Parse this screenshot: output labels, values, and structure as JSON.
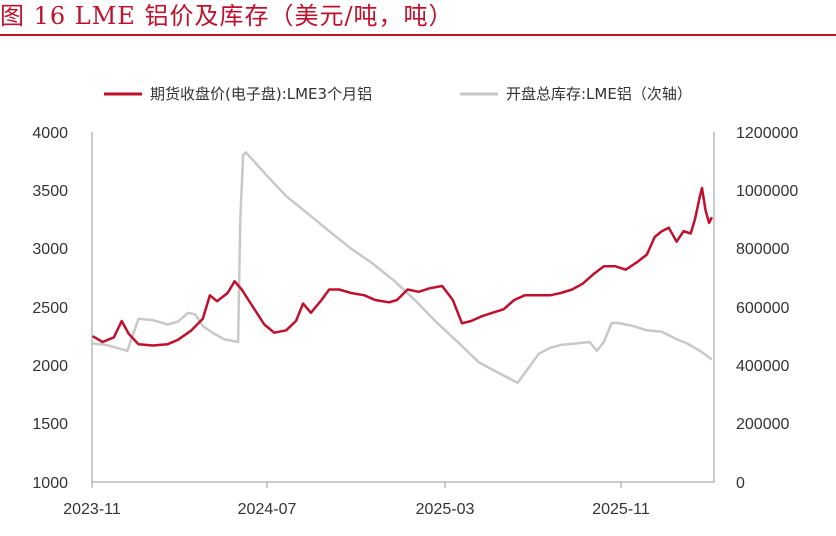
{
  "figure_title": "图 16 LME 铝价及库存（美元/吨，吨）",
  "chart_data": {
    "type": "line",
    "title": "图 16 LME 铝价及库存（美元/吨，吨）",
    "xlabel": "",
    "ylabel": "",
    "grid": false,
    "legend_position": "top",
    "x_ticks": [
      "2023-11",
      "2024-07",
      "2025-03",
      "2025-11"
    ],
    "y_left": {
      "ticks": [
        "4000",
        "3500",
        "3000",
        "2500",
        "2000",
        "1500",
        "1000"
      ],
      "range": [
        1000,
        4000
      ]
    },
    "y_right": {
      "ticks": [
        "1200000",
        "1000000",
        "800000",
        "600000",
        "400000",
        "200000",
        "0"
      ],
      "range": [
        0,
        1200000
      ]
    },
    "series": [
      {
        "name": "期货收盘价(电子盘):LME3个月铝",
        "axis": "left",
        "color": "#c0102c",
        "points": [
          [
            "2023-11-01",
            2250
          ],
          [
            "2023-11-15",
            2200
          ],
          [
            "2023-12-01",
            2240
          ],
          [
            "2023-12-12",
            2380
          ],
          [
            "2023-12-22",
            2270
          ],
          [
            "2024-01-05",
            2180
          ],
          [
            "2024-01-25",
            2170
          ],
          [
            "2024-02-15",
            2180
          ],
          [
            "2024-03-01",
            2220
          ],
          [
            "2024-03-20",
            2300
          ],
          [
            "2024-04-05",
            2400
          ],
          [
            "2024-04-15",
            2600
          ],
          [
            "2024-04-25",
            2550
          ],
          [
            "2024-05-10",
            2620
          ],
          [
            "2024-05-20",
            2720
          ],
          [
            "2024-05-30",
            2650
          ],
          [
            "2024-06-15",
            2500
          ],
          [
            "2024-07-01",
            2350
          ],
          [
            "2024-07-15",
            2280
          ],
          [
            "2024-08-01",
            2300
          ],
          [
            "2024-08-15",
            2380
          ],
          [
            "2024-08-25",
            2530
          ],
          [
            "2024-09-05",
            2450
          ],
          [
            "2024-09-20",
            2560
          ],
          [
            "2024-10-01",
            2650
          ],
          [
            "2024-10-15",
            2650
          ],
          [
            "2024-11-01",
            2620
          ],
          [
            "2024-11-20",
            2600
          ],
          [
            "2024-12-05",
            2560
          ],
          [
            "2024-12-25",
            2540
          ],
          [
            "2025-01-05",
            2560
          ],
          [
            "2025-01-20",
            2650
          ],
          [
            "2025-02-05",
            2630
          ],
          [
            "2025-02-20",
            2660
          ],
          [
            "2025-03-10",
            2680
          ],
          [
            "2025-03-25",
            2560
          ],
          [
            "2025-04-07",
            2360
          ],
          [
            "2025-04-20",
            2380
          ],
          [
            "2025-05-05",
            2420
          ],
          [
            "2025-05-20",
            2450
          ],
          [
            "2025-06-05",
            2480
          ],
          [
            "2025-06-20",
            2560
          ],
          [
            "2025-07-05",
            2600
          ],
          [
            "2025-07-25",
            2600
          ],
          [
            "2025-08-10",
            2600
          ],
          [
            "2025-08-25",
            2620
          ],
          [
            "2025-09-10",
            2650
          ],
          [
            "2025-09-25",
            2700
          ],
          [
            "2025-10-10",
            2780
          ],
          [
            "2025-10-25",
            2850
          ],
          [
            "2025-11-10",
            2850
          ],
          [
            "2025-11-25",
            2820
          ],
          [
            "2025-12-10",
            2880
          ],
          [
            "2025-12-25",
            2950
          ],
          [
            "2026-01-05",
            3100
          ],
          [
            "2026-01-15",
            3150
          ],
          [
            "2026-01-25",
            3180
          ],
          [
            "2026-02-05",
            3060
          ],
          [
            "2026-02-15",
            3150
          ],
          [
            "2026-02-25",
            3130
          ],
          [
            "2026-03-03",
            3250
          ],
          [
            "2026-03-10",
            3450
          ],
          [
            "2026-03-13",
            3520
          ],
          [
            "2026-03-18",
            3330
          ],
          [
            "2026-03-23",
            3220
          ],
          [
            "2026-03-27",
            3270
          ]
        ]
      },
      {
        "name": "开盘总库存:LME铝（次轴）",
        "axis": "right",
        "color": "#c8c8c8",
        "points": [
          [
            "2023-11-01",
            475000
          ],
          [
            "2023-11-20",
            470000
          ],
          [
            "2023-12-05",
            460000
          ],
          [
            "2023-12-20",
            450000
          ],
          [
            "2024-01-05",
            560000
          ],
          [
            "2024-01-25",
            555000
          ],
          [
            "2024-02-15",
            540000
          ],
          [
            "2024-03-01",
            550000
          ],
          [
            "2024-03-15",
            580000
          ],
          [
            "2024-03-25",
            575000
          ],
          [
            "2024-04-05",
            535000
          ],
          [
            "2024-04-20",
            510000
          ],
          [
            "2024-05-05",
            490000
          ],
          [
            "2024-05-25",
            480000
          ],
          [
            "2024-05-28",
            900000
          ],
          [
            "2024-06-01",
            1120000
          ],
          [
            "2024-06-05",
            1130000
          ],
          [
            "2024-06-20",
            1090000
          ],
          [
            "2024-07-05",
            1050000
          ],
          [
            "2024-08-01",
            980000
          ],
          [
            "2024-09-01",
            920000
          ],
          [
            "2024-10-01",
            860000
          ],
          [
            "2024-11-01",
            800000
          ],
          [
            "2024-12-01",
            750000
          ],
          [
            "2025-01-01",
            690000
          ],
          [
            "2025-02-01",
            620000
          ],
          [
            "2025-03-01",
            550000
          ],
          [
            "2025-04-01",
            480000
          ],
          [
            "2025-05-01",
            410000
          ],
          [
            "2025-06-01",
            370000
          ],
          [
            "2025-06-25",
            340000
          ],
          [
            "2025-07-10",
            390000
          ],
          [
            "2025-07-25",
            440000
          ],
          [
            "2025-08-10",
            460000
          ],
          [
            "2025-08-25",
            470000
          ],
          [
            "2025-09-15",
            475000
          ],
          [
            "2025-10-05",
            480000
          ],
          [
            "2025-10-15",
            450000
          ],
          [
            "2025-10-25",
            480000
          ],
          [
            "2025-11-05",
            545000
          ],
          [
            "2025-11-15",
            545000
          ],
          [
            "2025-12-05",
            535000
          ],
          [
            "2025-12-25",
            520000
          ],
          [
            "2026-01-15",
            515000
          ],
          [
            "2026-02-05",
            490000
          ],
          [
            "2026-02-20",
            475000
          ],
          [
            "2026-03-10",
            450000
          ],
          [
            "2026-03-27",
            420000
          ]
        ]
      }
    ]
  }
}
